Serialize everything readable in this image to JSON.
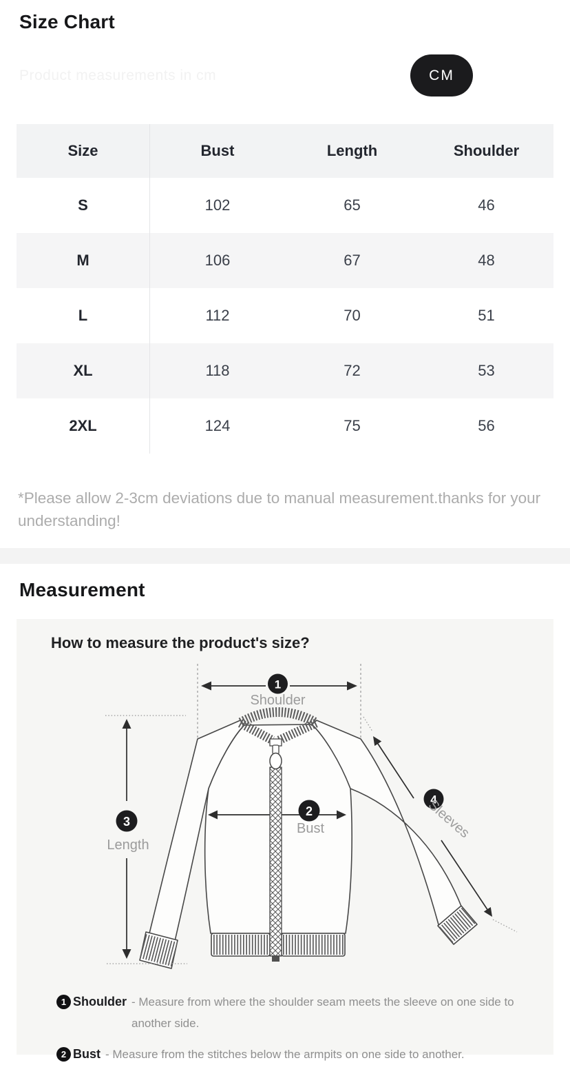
{
  "header": {
    "title": "Size Chart",
    "ghost_text": "Product measurements in cm",
    "unit_button": "CM"
  },
  "table": {
    "columns": [
      "Size",
      "Bust",
      "Length",
      "Shoulder"
    ],
    "rows": [
      [
        "S",
        "102",
        "65",
        "46"
      ],
      [
        "M",
        "106",
        "67",
        "48"
      ],
      [
        "L",
        "112",
        "70",
        "51"
      ],
      [
        "XL",
        "118",
        "72",
        "53"
      ],
      [
        "2XL",
        "124",
        "75",
        "56"
      ]
    ]
  },
  "note": "*Please allow 2-3cm deviations due to manual measurement.thanks for your understanding!",
  "measurement": {
    "title": "Measurement",
    "diagram_title": "How to measure the product's size?",
    "badge_1": "1",
    "badge_2": "2",
    "badge_3": "3",
    "badge_4": "4",
    "label_shoulder": "Shoulder",
    "label_bust": "Bust",
    "label_length": "Length",
    "label_sleeves": "Sleeves",
    "notes": [
      {
        "badge": "1",
        "label": "Shoulder",
        "desc": "- Measure from where the shoulder seam meets the sleeve on one side to another side."
      },
      {
        "badge": "2",
        "label": "Bust",
        "desc": "- Measure from the stitches below the armpits on one side to another."
      }
    ]
  },
  "colors": {
    "pill_bg": "#1b1b1d",
    "note_gray": "#acacac",
    "diagram_label_gray": "#9b9b9b"
  }
}
